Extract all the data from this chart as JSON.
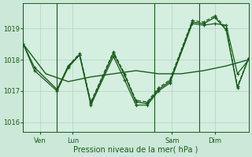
{
  "background_color": "#cce8d8",
  "plot_bg_color": "#d4eee0",
  "grid_color": "#a8ccb8",
  "line_color": "#1a5c1a",
  "xlabel": "Pression niveau de la mer( hPa )",
  "ylim": [
    1015.7,
    1019.8
  ],
  "yticks": [
    1016,
    1017,
    1018,
    1019
  ],
  "xtick_labels": [
    "Ven",
    "Lun",
    "Sam",
    "Dim"
  ],
  "series": [
    {
      "x": [
        0,
        10,
        20,
        30,
        40,
        50,
        60,
        70,
        80,
        90,
        100
      ],
      "y": [
        1018.5,
        1017.55,
        1017.3,
        1017.45,
        1017.55,
        1017.65,
        1017.55,
        1017.55,
        1017.65,
        1017.8,
        1018.0
      ],
      "marker": null,
      "linestyle": "-",
      "linewidth": 1.0
    },
    {
      "x": [
        0,
        5,
        15,
        20,
        25,
        30,
        40,
        45,
        50,
        55,
        60,
        65,
        75,
        80,
        85,
        90,
        95,
        100
      ],
      "y": [
        1018.5,
        1017.75,
        1017.05,
        1017.8,
        1018.15,
        1016.6,
        1018.2,
        1017.5,
        1016.65,
        1016.6,
        1017.05,
        1017.3,
        1019.2,
        1019.15,
        1019.35,
        1018.95,
        1017.1,
        1018.05
      ],
      "marker": "+",
      "linestyle": "-",
      "linewidth": 1.0
    },
    {
      "x": [
        15,
        20,
        25,
        30,
        40,
        45,
        50,
        55,
        60,
        65,
        75,
        80,
        85,
        90,
        95,
        100
      ],
      "y": [
        1017.05,
        1017.8,
        1018.2,
        1016.65,
        1018.25,
        1017.55,
        1016.7,
        1016.65,
        1017.1,
        1017.35,
        1019.25,
        1019.2,
        1019.4,
        1019.0,
        1017.15,
        1018.05
      ],
      "marker": "+",
      "linestyle": "--",
      "linewidth": 0.9
    },
    {
      "x": [
        0,
        5,
        15,
        20,
        25,
        30,
        40,
        45,
        50,
        55,
        60,
        65,
        75,
        80,
        85,
        90,
        95,
        100
      ],
      "y": [
        1018.5,
        1017.65,
        1017.0,
        1017.75,
        1018.15,
        1016.55,
        1018.1,
        1017.35,
        1016.55,
        1016.55,
        1017.0,
        1017.25,
        1019.15,
        1019.1,
        1019.15,
        1019.1,
        1017.55,
        1018.0
      ],
      "marker": "+",
      "linestyle": "-",
      "linewidth": 0.9
    }
  ]
}
